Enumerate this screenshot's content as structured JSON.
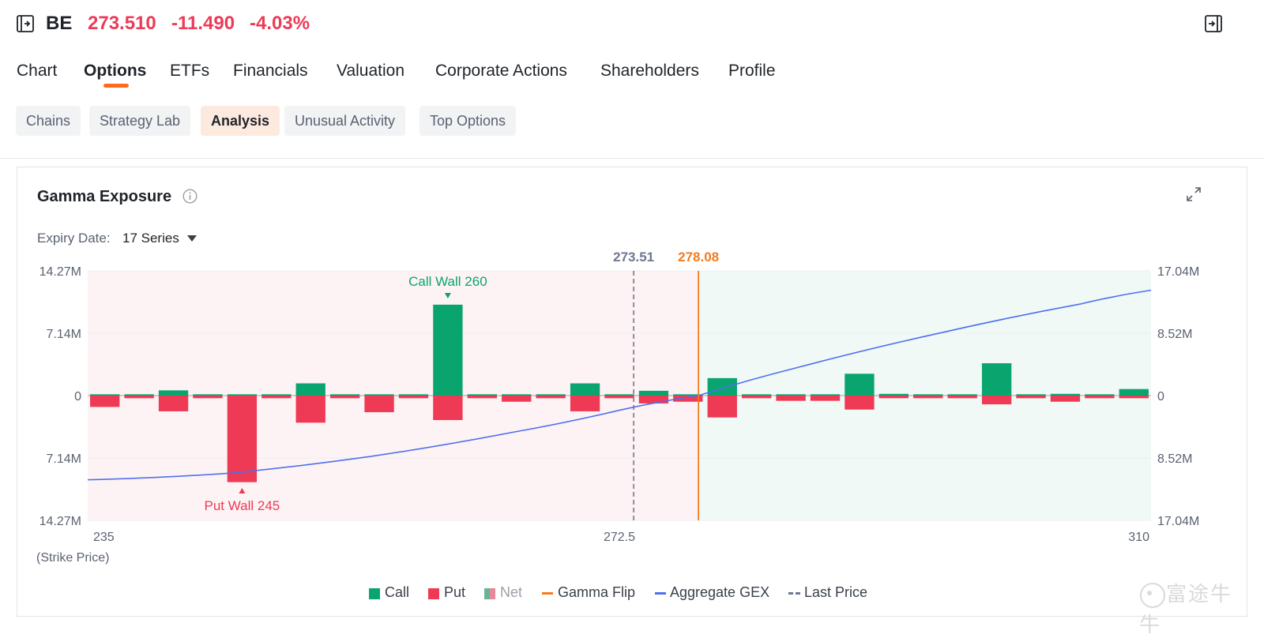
{
  "header": {
    "ticker": "BE",
    "price": "273.510",
    "change": "-11.490",
    "change_pct": "-4.03%"
  },
  "tabs": [
    {
      "label": "Chart"
    },
    {
      "label": "Options"
    },
    {
      "label": "ETFs"
    },
    {
      "label": "Financials"
    },
    {
      "label": "Valuation"
    },
    {
      "label": "Corporate Actions"
    },
    {
      "label": "Shareholders"
    },
    {
      "label": "Profile"
    }
  ],
  "subtabs": [
    {
      "label": "Chains"
    },
    {
      "label": "Strategy Lab"
    },
    {
      "label": "Analysis"
    },
    {
      "label": "Unusual Activity"
    },
    {
      "label": "Top Options"
    }
  ],
  "card": {
    "title": "Gamma Exposure",
    "expiry_label": "Expiry Date:",
    "expiry_value": "17 Series",
    "watermark": "富途牛牛"
  },
  "colors": {
    "call": "#0aa56f",
    "put": "#ef3a56",
    "net": "#9aa0a8",
    "gamma_flip": "#f37b20",
    "aggregate_gex": "#4f6fef",
    "last_price": "#6f7791",
    "accent": "#ff6a1a"
  },
  "chart_data": {
    "type": "bar",
    "x_label": "(Strike Price)",
    "x_ticks": [
      "235",
      "272.5",
      "310"
    ],
    "x_range": [
      235,
      310
    ],
    "y_left_ticks": [
      "14.27M",
      "7.14M",
      "0",
      "7.14M",
      "14.27M"
    ],
    "y_left_range": [
      -14.27,
      14.27
    ],
    "y_right_ticks": [
      "17.04M",
      "8.52M",
      "0",
      "8.52M",
      "17.04M"
    ],
    "y_right_range": [
      -17.04,
      17.04
    ],
    "strikes": [
      235,
      237.5,
      240,
      242.5,
      245,
      247.5,
      250,
      252.5,
      255,
      257.5,
      260,
      262.5,
      265,
      267.5,
      270,
      272.5,
      275,
      277.5,
      280,
      282.5,
      285,
      287.5,
      290,
      292.5,
      295,
      297.5,
      300,
      302.5,
      305,
      307.5,
      310
    ],
    "series": [
      {
        "name": "Call",
        "values": [
          0.15,
          0.15,
          0.6,
          0.15,
          0.15,
          0.15,
          1.4,
          0.15,
          0.15,
          0.15,
          10.4,
          0.15,
          0.15,
          0.15,
          1.4,
          0.15,
          0.55,
          0.15,
          2.0,
          0.15,
          0.15,
          0.15,
          2.5,
          0.2,
          0.15,
          0.15,
          3.7,
          0.15,
          0.2,
          0.15,
          0.75
        ]
      },
      {
        "name": "Put",
        "values": [
          -1.3,
          -0.3,
          -1.8,
          -0.3,
          -9.9,
          -0.3,
          -3.1,
          -0.3,
          -1.9,
          -0.3,
          -2.8,
          -0.3,
          -0.7,
          -0.3,
          -1.8,
          -0.3,
          -0.9,
          -0.7,
          -2.5,
          -0.3,
          -0.6,
          -0.6,
          -1.6,
          -0.3,
          -0.3,
          -0.3,
          -1.0,
          -0.3,
          -0.7,
          -0.3,
          -0.3
        ]
      },
      {
        "name": "Net"
      },
      {
        "name": "Gamma Flip",
        "value": 278.08
      },
      {
        "name": "Aggregate GEX"
      },
      {
        "name": "Last Price",
        "value": 273.51
      }
    ],
    "annotations": [
      {
        "text": "Call Wall 260",
        "strike": 260
      },
      {
        "text": "Put Wall 245",
        "strike": 245
      },
      {
        "text": "273.51",
        "strike": 273.51
      },
      {
        "text": "278.08",
        "strike": 278.08
      }
    ],
    "gex_curve": [
      [
        235,
        -11.5
      ],
      [
        245,
        -10.6
      ],
      [
        255,
        -8.3
      ],
      [
        265,
        -5.0
      ],
      [
        272.5,
        -2.0
      ],
      [
        278.08,
        0.0
      ],
      [
        285,
        3.8
      ],
      [
        295,
        8.5
      ],
      [
        305,
        12.5
      ],
      [
        310,
        14.4
      ]
    ],
    "legend_position": "bottom-center"
  }
}
